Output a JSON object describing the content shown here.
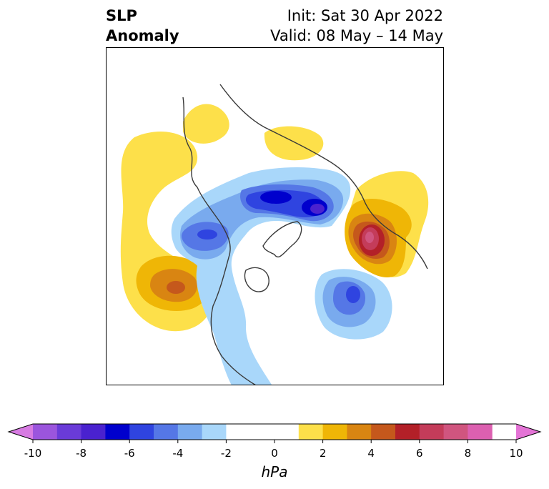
{
  "title": {
    "left_line1": "SLP",
    "left_line2": "Anomaly",
    "right_line1": "Init: Sat 30 Apr 2022",
    "right_line2": "Valid: 08 May – 14 May"
  },
  "map": {
    "projection": "north polar stereographic",
    "variable": "sea level pressure anomaly",
    "features": [
      {
        "label": "blue-core-arctic",
        "value": -7
      },
      {
        "label": "red-core-europe",
        "value": 7
      },
      {
        "label": "orange-core-pacific",
        "value": 4
      },
      {
        "label": "blue-core-atlantic",
        "value": -5
      },
      {
        "label": "blue-core-bering",
        "value": -4
      }
    ]
  },
  "colorbar": {
    "unit_label": "hPa",
    "ticks": [
      "-10",
      "-8",
      "-6",
      "-4",
      "-2",
      "0",
      "2",
      "4",
      "6",
      "8",
      "10"
    ],
    "bins": [
      {
        "min": -10,
        "max": -9,
        "color": "#9b55dd"
      },
      {
        "min": -9,
        "max": -8,
        "color": "#6a3bd8"
      },
      {
        "min": -8,
        "max": -7,
        "color": "#4a22cf"
      },
      {
        "min": -7,
        "max": -6,
        "color": "#0000cd"
      },
      {
        "min": -6,
        "max": -5,
        "color": "#2f44e0"
      },
      {
        "min": -5,
        "max": -4,
        "color": "#5577e6"
      },
      {
        "min": -4,
        "max": -3,
        "color": "#79aaee"
      },
      {
        "min": -3,
        "max": -2,
        "color": "#a9d7fa"
      },
      {
        "min": -2,
        "max": 1,
        "color": "#ffffff"
      },
      {
        "min": 1,
        "max": 2,
        "color": "#fde04a"
      },
      {
        "min": 2,
        "max": 3,
        "color": "#efb606"
      },
      {
        "min": 3,
        "max": 4,
        "color": "#d98512"
      },
      {
        "min": 4,
        "max": 5,
        "color": "#c5581c"
      },
      {
        "min": 5,
        "max": 6,
        "color": "#b32028"
      },
      {
        "min": 6,
        "max": 7,
        "color": "#c43c5a"
      },
      {
        "min": 7,
        "max": 8,
        "color": "#d0557f"
      },
      {
        "min": 8,
        "max": 9,
        "color": "#dc60b0"
      }
    ],
    "under_color": "#d77be2",
    "over_color": "#e474d6"
  }
}
